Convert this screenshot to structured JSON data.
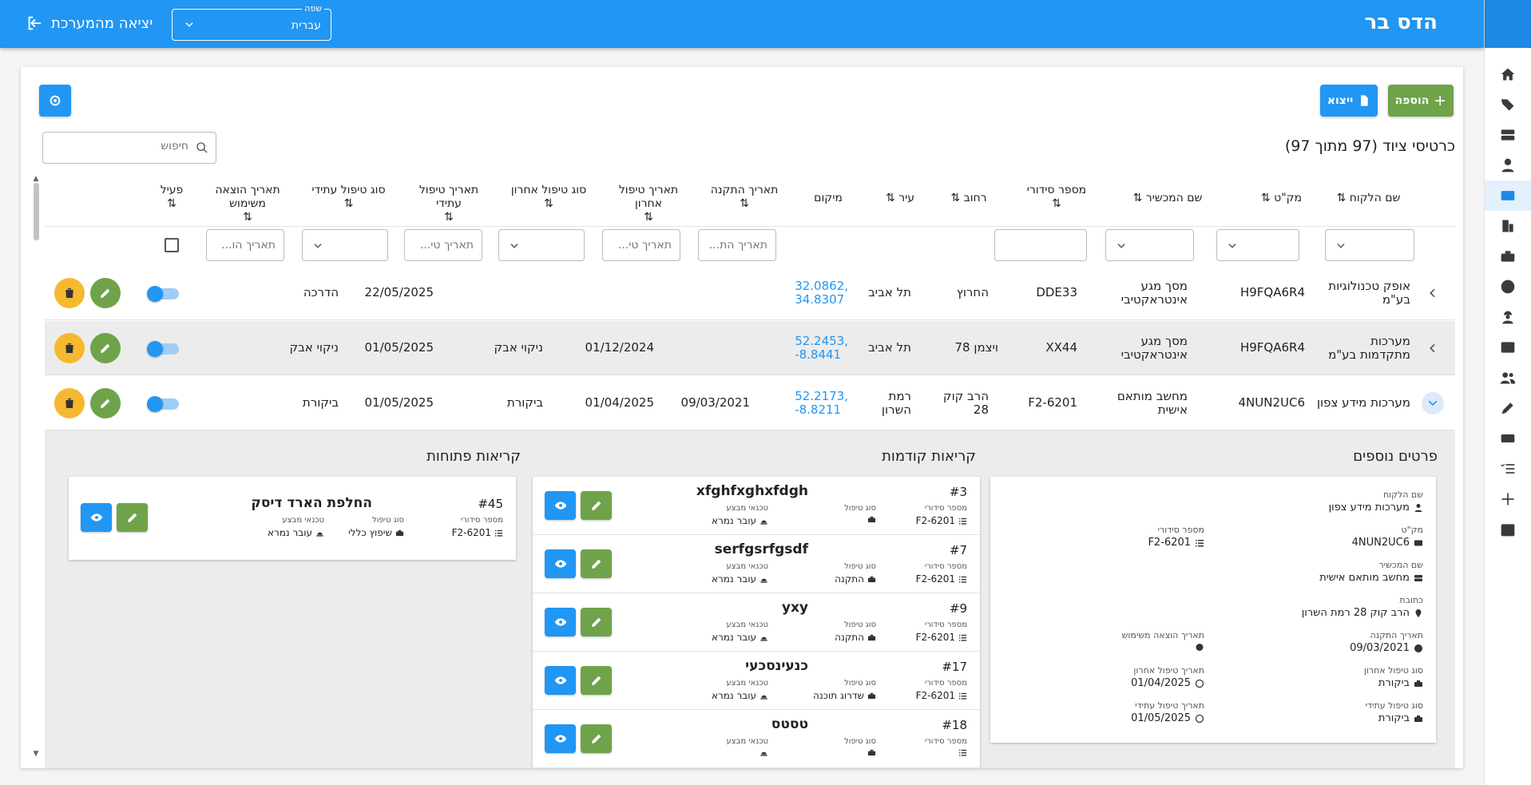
{
  "app": {
    "title": "הדס בר",
    "logout_label": "יציאה מהמערכת"
  },
  "language": {
    "label": "שפה",
    "value": "עברית"
  },
  "toolbar": {
    "add_label": "הוספה",
    "export_label": "ייצוא"
  },
  "list": {
    "title": "כרטיסי ציוד (97 מתוך 97)",
    "search_placeholder": "חיפוש"
  },
  "columns": {
    "customer": "שם הלקוח",
    "sku": "מק\"ט",
    "device": "שם המכשיר",
    "serial": "מספר סידורי",
    "street": "רחוב",
    "city": "עיר",
    "location": "מיקום",
    "install_date": "תאריך התקנה",
    "last_service_date": "תאריך טיפול אחרון",
    "last_service_type": "סוג טיפול אחרון",
    "next_service_date": "תאריך טיפול עתידי",
    "next_service_type": "סוג טיפול עתידי",
    "retire_date": "תאריך הוצאה משימוש",
    "active": "פעיל",
    "sort": "⇅"
  },
  "filters": {
    "install_ph": "תאריך הת...",
    "last_ph": "תאריך טי...",
    "next_ph": "תאריך טי...",
    "retire_ph": "תאריך הו..."
  },
  "rows": [
    {
      "customer": "אופק טכנולוגיות בע\"מ",
      "sku": "H9FQA6R4",
      "device": "מסך מגע אינטראקטיבי",
      "serial": "DDE33",
      "street": "החרוץ",
      "city": "תל אביב",
      "loc1": "32.0862,",
      "loc2": "34.8307",
      "install": "",
      "last_date": "",
      "last_type": "",
      "next_date": "22/05/2025",
      "next_type": "הדרכה"
    },
    {
      "customer": "מערכות מתקדמות בע\"מ",
      "sku": "H9FQA6R4",
      "device": "מסך מגע אינטראקטיבי",
      "serial": "XX44",
      "street": "ויצמן 78",
      "city": "תל אביב",
      "loc1": "52.2453,",
      "loc2": "-8.8441",
      "install": "",
      "last_date": "01/12/2024",
      "last_type": "ניקוי אבק",
      "next_date": "01/05/2025",
      "next_type": "ניקוי אבק"
    },
    {
      "customer": "מערכות מידע צפון",
      "sku": "4NUN2UC6",
      "device": "מחשב מותאם אישית",
      "serial": "F2-6201",
      "street": "הרב קוק 28",
      "city": "רמת השרון",
      "loc1": "52.2173,",
      "loc2": "-8.8211",
      "install": "09/03/2021",
      "last_date": "01/04/2025",
      "last_type": "ביקורת",
      "next_date": "01/05/2025",
      "next_type": "ביקורת"
    }
  ],
  "details": {
    "title": "פרטים נוספים",
    "customer_k": "שם הלקוח",
    "customer_v": "מערכות מידע צפון",
    "sku_k": "מק\"ט",
    "sku_v": "4NUN2UC6",
    "serial_k": "מספר סידורי",
    "serial_v": "6201-F2",
    "device_k": "שם המכשיר",
    "device_v": "מחשב מותאם אישית",
    "address_k": "כתובת",
    "address_v": "הרב קוק 28 רמת השרון",
    "install_k": "תאריך התקנה",
    "install_v": "09/03/2021",
    "retire_k": "תאריך הוצאה משימוש",
    "retire_v": "",
    "last_type_k": "סוג טיפול אחרון",
    "last_type_v": "ביקורת",
    "last_date_k": "תאריך טיפול אחרון",
    "last_date_v": "01/04/2025",
    "next_type_k": "סוג טיפול עתידי",
    "next_type_v": "ביקורת",
    "next_date_k": "תאריך טיפול עתידי",
    "next_date_v": "01/05/2025"
  },
  "prev_calls": {
    "title": "קריאות קודמות",
    "serial_k": "מספר סידורי",
    "type_k": "סוג טיפול",
    "tech_k": "טכנאי מבצע",
    "items": [
      {
        "num": "#3",
        "title": "xfghfxghxfdgh",
        "serial": "6201-F2",
        "type": "",
        "tech": "עובר נמרא"
      },
      {
        "num": "#7",
        "title": "serfgsrfgsdf",
        "serial": "6201-F2",
        "type": "התקנה",
        "tech": "עובר נמרא"
      },
      {
        "num": "#9",
        "title": "yxy",
        "serial": "6201-F2",
        "type": "התקנה",
        "tech": "עובר נמרא"
      },
      {
        "num": "#17",
        "title": "כנעינסכעי",
        "serial": "6201-F2",
        "type": "שדרוג תוכנה",
        "tech": "עובר נמרא"
      },
      {
        "num": "#18",
        "title": "טסטס",
        "serial": "",
        "type": "",
        "tech": ""
      }
    ]
  },
  "open_calls": {
    "title": "קריאות פתוחות",
    "items": [
      {
        "num": "#45",
        "title": "החלפת הארד דיסק",
        "serial": "6201-F2",
        "type": "שיפוץ כללי",
        "tech": "עובר נמרא"
      }
    ]
  },
  "colors": {
    "primary": "#2196f3",
    "green": "#6ea34a",
    "yellow": "#f5b82e"
  }
}
